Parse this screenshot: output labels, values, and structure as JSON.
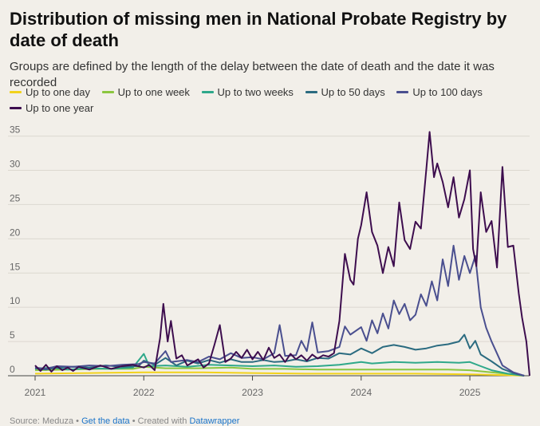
{
  "title": "Distribution of missing men in National Probate Registry by date of death",
  "subtitle": "Groups are defined by the length of the delay between the date of death and the date it was recorded",
  "legend": [
    {
      "label": "Up to one day",
      "color": "#f2d21b"
    },
    {
      "label": "Up to one week",
      "color": "#8cc63f"
    },
    {
      "label": "Up to two weeks",
      "color": "#2ea88a"
    },
    {
      "label": "Up to 50 days",
      "color": "#2b6b80"
    },
    {
      "label": "Up to 100 days",
      "color": "#4a4f8f"
    },
    {
      "label": "Up to one year",
      "color": "#3d0d4e"
    }
  ],
  "footer": {
    "source": "Source: Meduza",
    "sep1": "•",
    "get_data": "Get the data",
    "sep2": "•",
    "created": "Created with",
    "tool": "Datawrapper"
  },
  "chart_data": {
    "type": "line",
    "title": "Distribution of missing men in National Probate Registry by date of death",
    "xlabel": "",
    "ylabel": "",
    "xlim": [
      2021.0,
      2025.55
    ],
    "ylim": [
      0,
      36
    ],
    "yticks": [
      0,
      5,
      10,
      15,
      20,
      25,
      30,
      35
    ],
    "xticks": [
      2021,
      2022,
      2023,
      2024,
      2025
    ],
    "xtick_labels": [
      "2021",
      "2022",
      "2023",
      "2024",
      "2025"
    ],
    "grid": true,
    "legend_position": "top",
    "series": [
      {
        "name": "Up to one day",
        "color": "#f2d21b",
        "points": [
          [
            2021.0,
            0.3
          ],
          [
            2021.5,
            0.4
          ],
          [
            2022.0,
            0.5
          ],
          [
            2022.5,
            0.5
          ],
          [
            2023.0,
            0.4
          ],
          [
            2023.5,
            0.3
          ],
          [
            2024.0,
            0.3
          ],
          [
            2024.5,
            0.3
          ],
          [
            2025.0,
            0.2
          ],
          [
            2025.3,
            0.1
          ],
          [
            2025.5,
            0
          ]
        ]
      },
      {
        "name": "Up to one week",
        "color": "#8cc63f",
        "points": [
          [
            2021.0,
            0.8
          ],
          [
            2021.3,
            0.9
          ],
          [
            2021.6,
            1.0
          ],
          [
            2021.9,
            1.0
          ],
          [
            2022.0,
            1.3
          ],
          [
            2022.2,
            1.1
          ],
          [
            2022.5,
            1.1
          ],
          [
            2022.8,
            1.2
          ],
          [
            2023.0,
            1.0
          ],
          [
            2023.3,
            1.0
          ],
          [
            2023.6,
            0.9
          ],
          [
            2023.9,
            0.9
          ],
          [
            2024.2,
            0.9
          ],
          [
            2024.5,
            0.9
          ],
          [
            2024.8,
            0.9
          ],
          [
            2025.0,
            0.8
          ],
          [
            2025.2,
            0.5
          ],
          [
            2025.4,
            0.2
          ],
          [
            2025.5,
            0
          ]
        ]
      },
      {
        "name": "Up to two weeks",
        "color": "#2ea88a",
        "points": [
          [
            2021.0,
            1.0
          ],
          [
            2021.15,
            1.2
          ],
          [
            2021.3,
            0.9
          ],
          [
            2021.5,
            1.1
          ],
          [
            2021.7,
            1.0
          ],
          [
            2021.9,
            1.2
          ],
          [
            2022.0,
            3.2
          ],
          [
            2022.05,
            1.4
          ],
          [
            2022.2,
            1.5
          ],
          [
            2022.4,
            1.3
          ],
          [
            2022.6,
            1.6
          ],
          [
            2022.8,
            1.5
          ],
          [
            2023.0,
            1.4
          ],
          [
            2023.2,
            1.5
          ],
          [
            2023.4,
            1.3
          ],
          [
            2023.6,
            1.4
          ],
          [
            2023.8,
            1.6
          ],
          [
            2024.0,
            2.0
          ],
          [
            2024.1,
            1.8
          ],
          [
            2024.3,
            2.0
          ],
          [
            2024.5,
            1.9
          ],
          [
            2024.7,
            2.0
          ],
          [
            2024.9,
            1.9
          ],
          [
            2025.0,
            2.0
          ],
          [
            2025.1,
            1.4
          ],
          [
            2025.2,
            0.8
          ],
          [
            2025.35,
            0.3
          ],
          [
            2025.5,
            0
          ]
        ]
      },
      {
        "name": "Up to 50 days",
        "color": "#2b6b80",
        "points": [
          [
            2021.0,
            1.1
          ],
          [
            2021.1,
            0.9
          ],
          [
            2021.2,
            1.2
          ],
          [
            2021.35,
            1.3
          ],
          [
            2021.5,
            1.2
          ],
          [
            2021.65,
            1.5
          ],
          [
            2021.8,
            1.3
          ],
          [
            2021.95,
            1.4
          ],
          [
            2022.0,
            2.2
          ],
          [
            2022.1,
            1.6
          ],
          [
            2022.2,
            2.6
          ],
          [
            2022.3,
            1.5
          ],
          [
            2022.4,
            2.2
          ],
          [
            2022.5,
            1.8
          ],
          [
            2022.6,
            2.3
          ],
          [
            2022.7,
            1.9
          ],
          [
            2022.8,
            2.4
          ],
          [
            2022.9,
            2.0
          ],
          [
            2023.0,
            2.0
          ],
          [
            2023.1,
            2.3
          ],
          [
            2023.2,
            2.0
          ],
          [
            2023.3,
            2.1
          ],
          [
            2023.4,
            2.4
          ],
          [
            2023.5,
            2.1
          ],
          [
            2023.6,
            2.6
          ],
          [
            2023.7,
            2.5
          ],
          [
            2023.8,
            3.3
          ],
          [
            2023.9,
            3.1
          ],
          [
            2024.0,
            4.0
          ],
          [
            2024.1,
            3.3
          ],
          [
            2024.2,
            4.2
          ],
          [
            2024.3,
            4.5
          ],
          [
            2024.4,
            4.2
          ],
          [
            2024.5,
            3.8
          ],
          [
            2024.6,
            4.0
          ],
          [
            2024.7,
            4.4
          ],
          [
            2024.8,
            4.6
          ],
          [
            2024.9,
            5.0
          ],
          [
            2024.95,
            6.0
          ],
          [
            2025.0,
            4.0
          ],
          [
            2025.05,
            5.1
          ],
          [
            2025.1,
            3.1
          ],
          [
            2025.2,
            2.1
          ],
          [
            2025.3,
            1.0
          ],
          [
            2025.4,
            0.4
          ],
          [
            2025.5,
            0
          ]
        ]
      },
      {
        "name": "Up to 100 days",
        "color": "#4a4f8f",
        "points": [
          [
            2021.0,
            1.2
          ],
          [
            2021.1,
            1.0
          ],
          [
            2021.2,
            1.4
          ],
          [
            2021.35,
            1.3
          ],
          [
            2021.5,
            1.5
          ],
          [
            2021.65,
            1.4
          ],
          [
            2021.8,
            1.6
          ],
          [
            2021.95,
            1.7
          ],
          [
            2022.0,
            2.0
          ],
          [
            2022.1,
            1.8
          ],
          [
            2022.2,
            3.6
          ],
          [
            2022.25,
            2.0
          ],
          [
            2022.4,
            2.3
          ],
          [
            2022.5,
            2.0
          ],
          [
            2022.6,
            2.8
          ],
          [
            2022.7,
            2.4
          ],
          [
            2022.8,
            3.3
          ],
          [
            2022.9,
            2.6
          ],
          [
            2023.0,
            2.7
          ],
          [
            2023.1,
            2.4
          ],
          [
            2023.2,
            3.3
          ],
          [
            2023.25,
            7.4
          ],
          [
            2023.3,
            2.9
          ],
          [
            2023.4,
            3.0
          ],
          [
            2023.45,
            5.1
          ],
          [
            2023.5,
            3.6
          ],
          [
            2023.55,
            7.8
          ],
          [
            2023.6,
            3.4
          ],
          [
            2023.7,
            3.6
          ],
          [
            2023.8,
            4.2
          ],
          [
            2023.85,
            7.2
          ],
          [
            2023.9,
            6.0
          ],
          [
            2024.0,
            7.1
          ],
          [
            2024.05,
            5.1
          ],
          [
            2024.1,
            8.1
          ],
          [
            2024.15,
            6.2
          ],
          [
            2024.2,
            9.1
          ],
          [
            2024.25,
            6.9
          ],
          [
            2024.3,
            11.0
          ],
          [
            2024.35,
            9.0
          ],
          [
            2024.4,
            10.5
          ],
          [
            2024.45,
            8.1
          ],
          [
            2024.5,
            8.9
          ],
          [
            2024.55,
            11.9
          ],
          [
            2024.6,
            10.2
          ],
          [
            2024.65,
            13.8
          ],
          [
            2024.7,
            11.0
          ],
          [
            2024.75,
            17.0
          ],
          [
            2024.8,
            13.1
          ],
          [
            2024.85,
            19.0
          ],
          [
            2024.9,
            14.0
          ],
          [
            2024.95,
            17.5
          ],
          [
            2025.0,
            15.0
          ],
          [
            2025.05,
            17.5
          ],
          [
            2025.1,
            10.0
          ],
          [
            2025.15,
            7.0
          ],
          [
            2025.2,
            5.0
          ],
          [
            2025.3,
            1.5
          ],
          [
            2025.4,
            0.5
          ],
          [
            2025.5,
            0
          ]
        ]
      },
      {
        "name": "Up to one year",
        "color": "#3d0d4e",
        "points": [
          [
            2021.0,
            1.5
          ],
          [
            2021.05,
            0.7
          ],
          [
            2021.1,
            1.6
          ],
          [
            2021.15,
            0.6
          ],
          [
            2021.2,
            1.4
          ],
          [
            2021.25,
            0.8
          ],
          [
            2021.3,
            1.2
          ],
          [
            2021.35,
            0.7
          ],
          [
            2021.4,
            1.3
          ],
          [
            2021.5,
            0.9
          ],
          [
            2021.6,
            1.5
          ],
          [
            2021.7,
            1.0
          ],
          [
            2021.8,
            1.4
          ],
          [
            2021.9,
            1.6
          ],
          [
            2022.0,
            1.2
          ],
          [
            2022.05,
            1.6
          ],
          [
            2022.1,
            0.8
          ],
          [
            2022.15,
            5.5
          ],
          [
            2022.18,
            10.5
          ],
          [
            2022.22,
            5.0
          ],
          [
            2022.25,
            8.0
          ],
          [
            2022.3,
            2.5
          ],
          [
            2022.35,
            3.0
          ],
          [
            2022.4,
            1.5
          ],
          [
            2022.5,
            2.4
          ],
          [
            2022.55,
            1.2
          ],
          [
            2022.6,
            1.8
          ],
          [
            2022.65,
            4.5
          ],
          [
            2022.7,
            7.4
          ],
          [
            2022.75,
            2.0
          ],
          [
            2022.8,
            2.5
          ],
          [
            2022.85,
            3.5
          ],
          [
            2022.9,
            2.6
          ],
          [
            2022.95,
            3.8
          ],
          [
            2023.0,
            2.4
          ],
          [
            2023.05,
            3.5
          ],
          [
            2023.1,
            2.3
          ],
          [
            2023.15,
            4.1
          ],
          [
            2023.2,
            2.6
          ],
          [
            2023.25,
            3.1
          ],
          [
            2023.3,
            2.0
          ],
          [
            2023.35,
            3.2
          ],
          [
            2023.4,
            2.4
          ],
          [
            2023.45,
            3.0
          ],
          [
            2023.5,
            2.2
          ],
          [
            2023.55,
            3.1
          ],
          [
            2023.6,
            2.5
          ],
          [
            2023.65,
            3.0
          ],
          [
            2023.7,
            2.8
          ],
          [
            2023.75,
            3.3
          ],
          [
            2023.8,
            8.0
          ],
          [
            2023.85,
            17.8
          ],
          [
            2023.9,
            14.0
          ],
          [
            2023.93,
            13.3
          ],
          [
            2023.97,
            20.0
          ],
          [
            2024.0,
            22.0
          ],
          [
            2024.05,
            26.8
          ],
          [
            2024.1,
            21.0
          ],
          [
            2024.15,
            19.0
          ],
          [
            2024.2,
            15.0
          ],
          [
            2024.25,
            18.8
          ],
          [
            2024.3,
            16.0
          ],
          [
            2024.35,
            25.3
          ],
          [
            2024.4,
            19.8
          ],
          [
            2024.45,
            18.5
          ],
          [
            2024.5,
            22.5
          ],
          [
            2024.55,
            21.5
          ],
          [
            2024.6,
            30.2
          ],
          [
            2024.63,
            35.6
          ],
          [
            2024.67,
            29.0
          ],
          [
            2024.7,
            31.0
          ],
          [
            2024.75,
            28.3
          ],
          [
            2024.8,
            24.6
          ],
          [
            2024.85,
            29.0
          ],
          [
            2024.9,
            23.1
          ],
          [
            2024.95,
            25.8
          ],
          [
            2025.0,
            30.0
          ],
          [
            2025.03,
            18.5
          ],
          [
            2025.06,
            16.0
          ],
          [
            2025.1,
            26.8
          ],
          [
            2025.15,
            21.0
          ],
          [
            2025.2,
            22.6
          ],
          [
            2025.25,
            15.8
          ],
          [
            2025.3,
            30.5
          ],
          [
            2025.35,
            18.8
          ],
          [
            2025.4,
            19.0
          ],
          [
            2025.45,
            12.0
          ],
          [
            2025.48,
            8.5
          ],
          [
            2025.52,
            5.0
          ],
          [
            2025.55,
            0
          ]
        ]
      }
    ]
  }
}
